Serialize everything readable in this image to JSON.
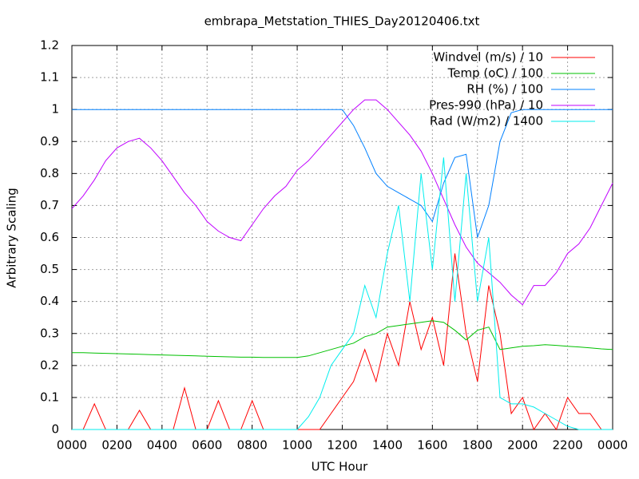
{
  "chart_data": {
    "type": "line",
    "title": "embrapa_Metstation_THIES_Day20120406.txt",
    "xlabel": "UTC Hour",
    "ylabel": "Arbitrary Scaling",
    "xlim": [
      0,
      24
    ],
    "ylim": [
      0,
      1.2
    ],
    "xticks": [
      {
        "value": 0,
        "label": "0000"
      },
      {
        "value": 2,
        "label": "0200"
      },
      {
        "value": 4,
        "label": "0400"
      },
      {
        "value": 6,
        "label": "0600"
      },
      {
        "value": 8,
        "label": "0800"
      },
      {
        "value": 10,
        "label": "1000"
      },
      {
        "value": 12,
        "label": "1200"
      },
      {
        "value": 14,
        "label": "1400"
      },
      {
        "value": 16,
        "label": "1600"
      },
      {
        "value": 18,
        "label": "1800"
      },
      {
        "value": 20,
        "label": "2000"
      },
      {
        "value": 22,
        "label": "2200"
      },
      {
        "value": 24,
        "label": "0000"
      }
    ],
    "yticks": [
      0,
      0.1,
      0.2,
      0.3,
      0.4,
      0.5,
      0.6,
      0.7,
      0.8,
      0.9,
      1,
      1.1,
      1.2
    ],
    "grid": true,
    "legend": "top-right",
    "x": [
      0,
      0.5,
      1,
      1.5,
      2,
      2.5,
      3,
      3.5,
      4,
      4.5,
      5,
      5.5,
      6,
      6.5,
      7,
      7.5,
      8,
      8.5,
      9,
      9.5,
      10,
      10.5,
      11,
      11.5,
      12,
      12.5,
      13,
      13.5,
      14,
      14.5,
      15,
      15.5,
      16,
      16.5,
      17,
      17.5,
      18,
      18.5,
      19,
      19.5,
      20,
      20.5,
      21,
      21.5,
      22,
      22.5,
      23,
      23.5,
      24
    ],
    "series": [
      {
        "name": "Windvel (m/s) / 10",
        "color": "#ff0000",
        "values": [
          0,
          0,
          0.08,
          0,
          0,
          0,
          0.06,
          0,
          0,
          0,
          0.13,
          0,
          0,
          0.09,
          0,
          0,
          0.09,
          0,
          0,
          0,
          0,
          0,
          0,
          0.05,
          0.1,
          0.15,
          0.25,
          0.15,
          0.3,
          0.2,
          0.4,
          0.25,
          0.35,
          0.2,
          0.55,
          0.3,
          0.15,
          0.45,
          0.3,
          0.05,
          0.1,
          0,
          0.05,
          0,
          0.1,
          0.05,
          0.05,
          0,
          0
        ]
      },
      {
        "name": "Temp (oC) / 100",
        "color": "#00c000",
        "values": [
          0.24,
          0.24,
          0.239,
          0.238,
          0.237,
          0.236,
          0.235,
          0.234,
          0.233,
          0.232,
          0.231,
          0.23,
          0.229,
          0.228,
          0.227,
          0.226,
          0.226,
          0.225,
          0.225,
          0.225,
          0.225,
          0.23,
          0.24,
          0.25,
          0.26,
          0.27,
          0.29,
          0.3,
          0.32,
          0.325,
          0.33,
          0.335,
          0.34,
          0.335,
          0.31,
          0.28,
          0.31,
          0.32,
          0.25,
          0.255,
          0.26,
          0.262,
          0.265,
          0.263,
          0.26,
          0.258,
          0.255,
          0.252,
          0.25
        ]
      },
      {
        "name": "RH (%) / 100",
        "color": "#0080ff",
        "values": [
          1,
          1,
          1,
          1,
          1,
          1,
          1,
          1,
          1,
          1,
          1,
          1,
          1,
          1,
          1,
          1,
          1,
          1,
          1,
          1,
          1,
          1,
          1,
          1,
          1,
          0.95,
          0.88,
          0.8,
          0.76,
          0.74,
          0.72,
          0.7,
          0.65,
          0.77,
          0.85,
          0.86,
          0.6,
          0.7,
          0.9,
          0.99,
          1,
          1,
          1,
          1,
          1,
          1,
          1,
          1,
          1
        ]
      },
      {
        "name": "Pres-990 (hPa) / 10",
        "color": "#c000ff",
        "values": [
          0.69,
          0.73,
          0.78,
          0.84,
          0.88,
          0.9,
          0.91,
          0.88,
          0.84,
          0.79,
          0.74,
          0.7,
          0.65,
          0.62,
          0.6,
          0.59,
          0.64,
          0.69,
          0.73,
          0.76,
          0.81,
          0.84,
          0.88,
          0.92,
          0.96,
          1,
          1.03,
          1.03,
          1,
          0.96,
          0.92,
          0.87,
          0.8,
          0.72,
          0.64,
          0.57,
          0.52,
          0.49,
          0.46,
          0.42,
          0.39,
          0.45,
          0.45,
          0.49,
          0.55,
          0.58,
          0.63,
          0.7,
          0.77
        ]
      },
      {
        "name": "Rad (W/m2) / 1400",
        "color": "#00eeee",
        "values": [
          0,
          0,
          0,
          0,
          0,
          0,
          0,
          0,
          0,
          0,
          0,
          0,
          0,
          0,
          0,
          0,
          0,
          0,
          0,
          0,
          0,
          0.04,
          0.1,
          0.2,
          0.25,
          0.3,
          0.45,
          0.35,
          0.55,
          0.7,
          0.4,
          0.8,
          0.5,
          0.85,
          0.4,
          0.8,
          0.4,
          0.6,
          0.1,
          0.08,
          0.08,
          0.07,
          0.05,
          0.03,
          0.01,
          0,
          0,
          0,
          0
        ]
      }
    ]
  }
}
